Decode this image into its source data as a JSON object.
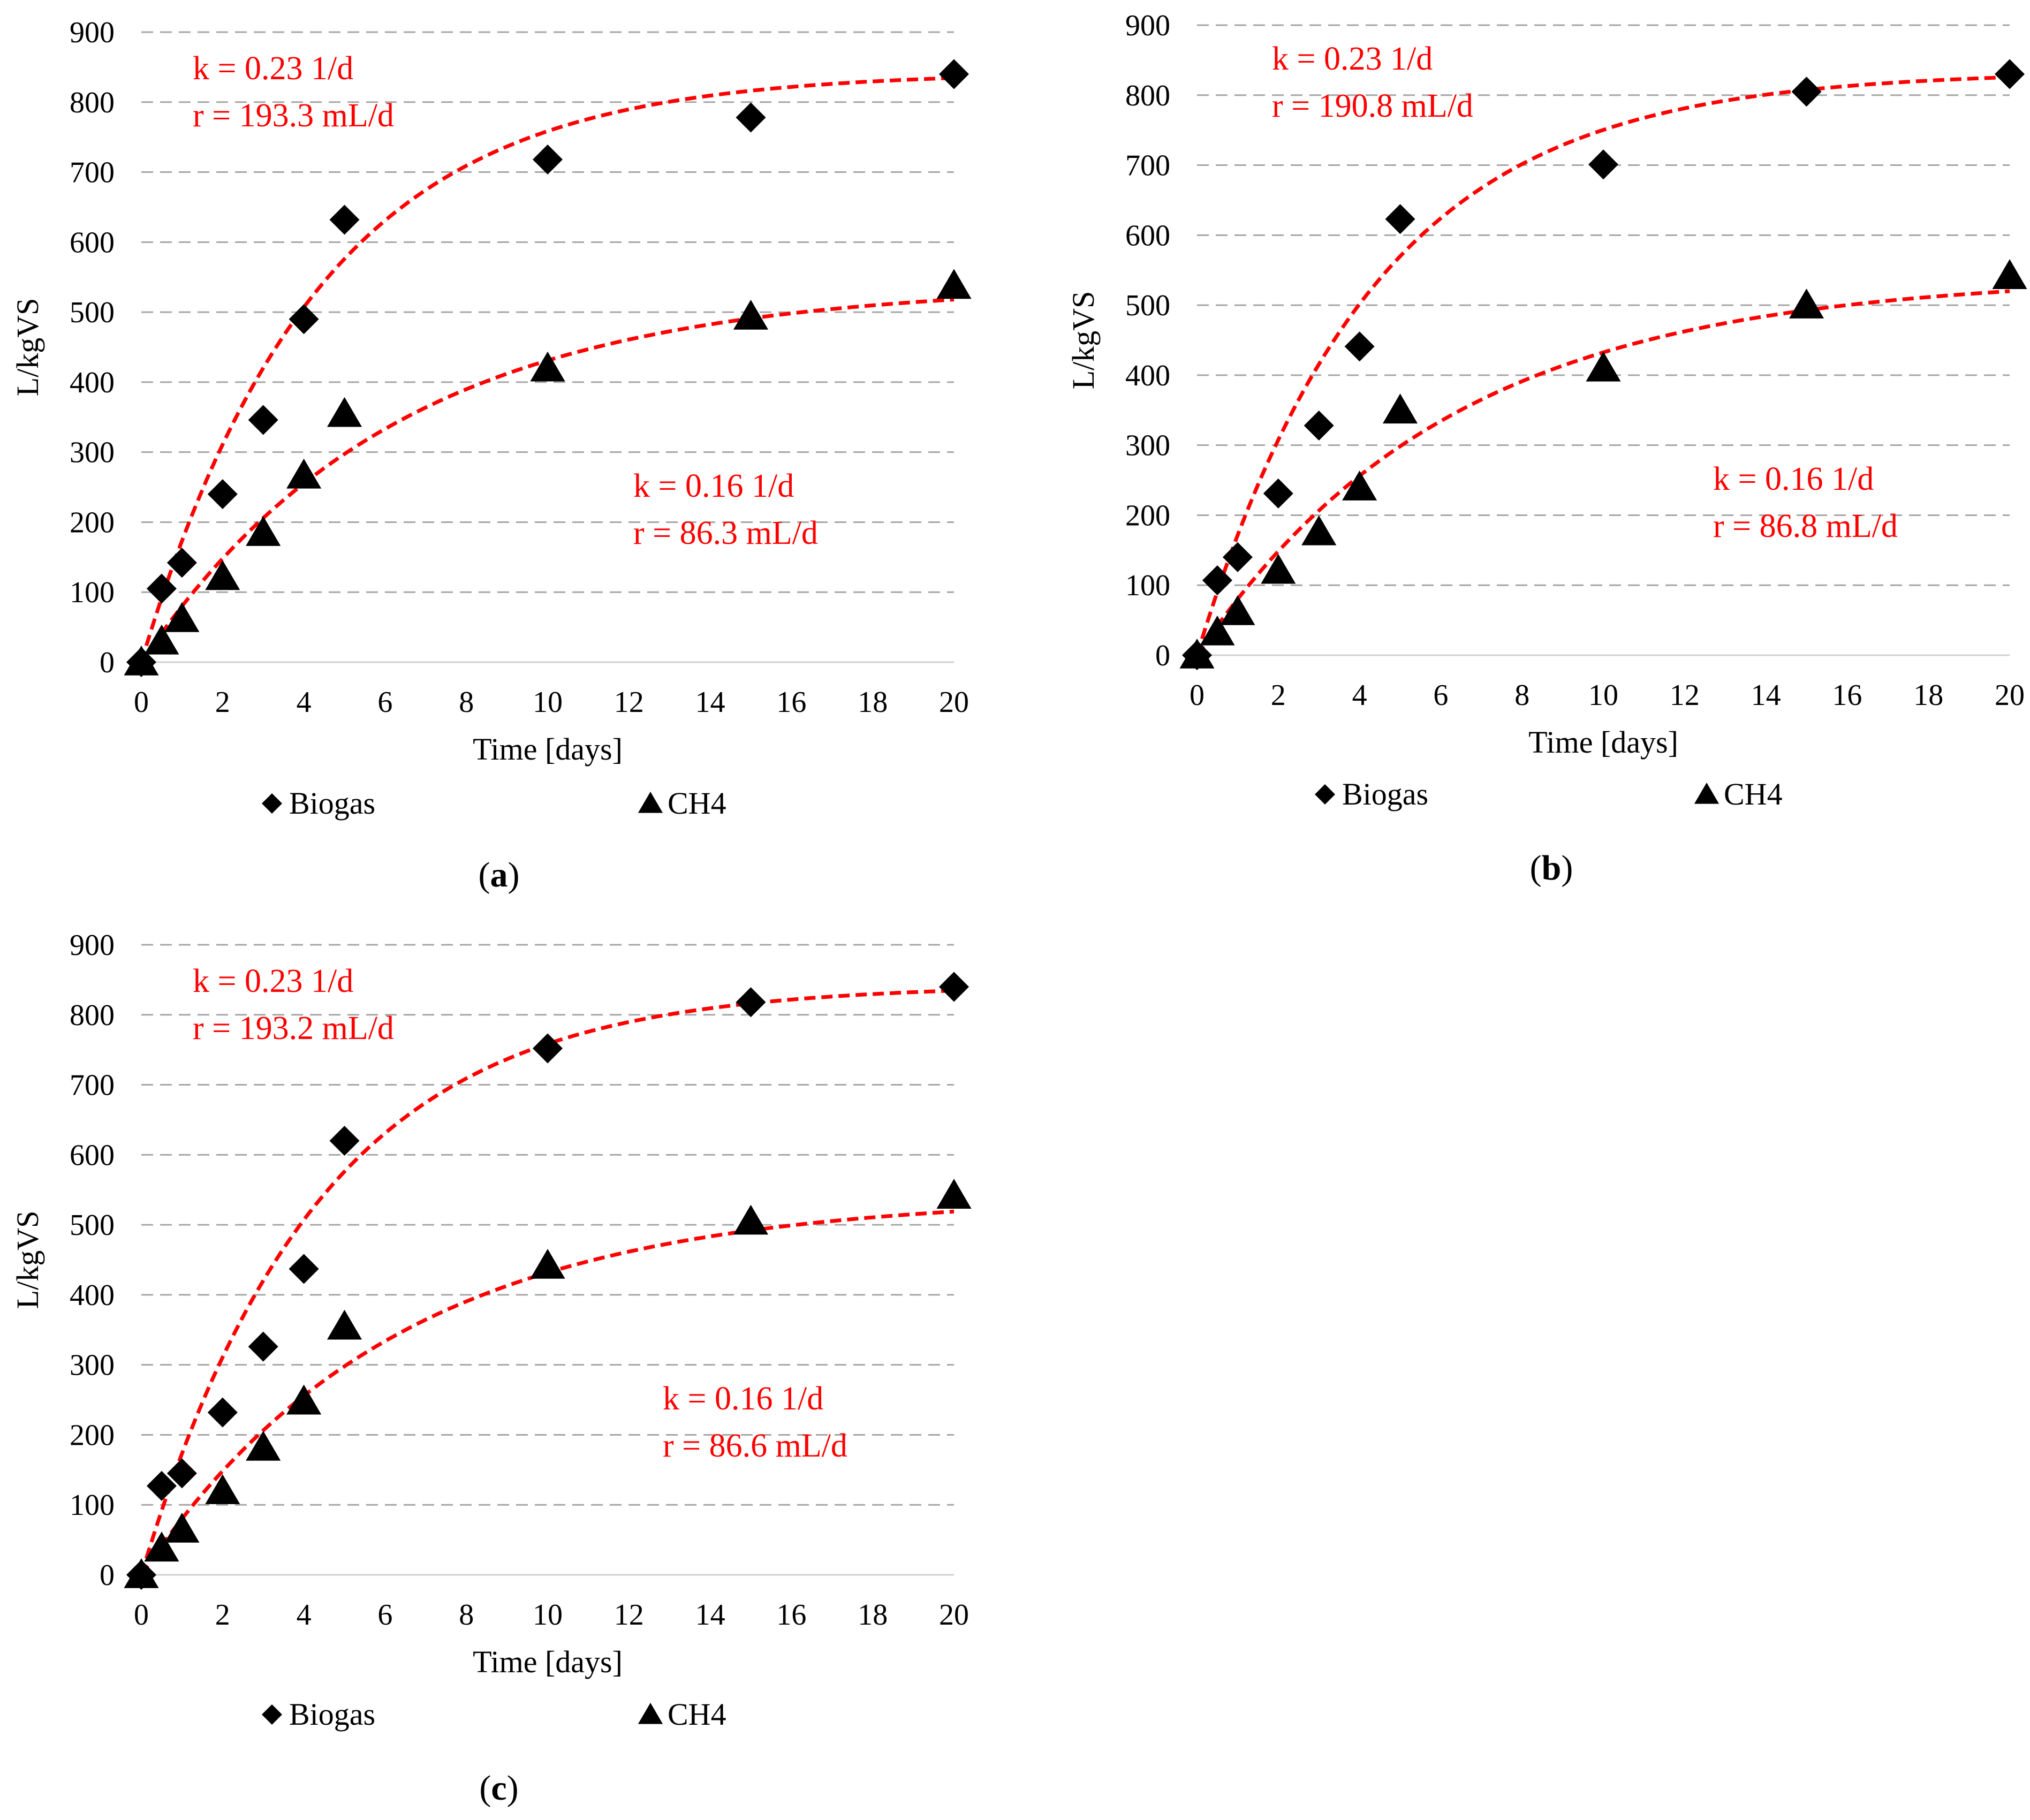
{
  "figure": {
    "colors": {
      "fit": "#ff0000",
      "marker": "#000000",
      "grid": "#a6a6a6",
      "text": "#000000"
    }
  },
  "chart_data": [
    {
      "id": "a",
      "panel_label": "a",
      "type": "scatter",
      "xlabel": "Time [days]",
      "ylabel": "L/kgVS",
      "xlim": [
        0,
        20
      ],
      "ylim": [
        0,
        900
      ],
      "xticks": [
        "0",
        "2",
        "4",
        "6",
        "8",
        "10",
        "12",
        "14",
        "16",
        "18",
        "20"
      ],
      "yticks": [
        "0",
        "100",
        "200",
        "300",
        "400",
        "500",
        "600",
        "700",
        "800",
        "900"
      ],
      "legend": [
        "Biogas",
        "CH4"
      ],
      "series": [
        {
          "name": "Biogas",
          "marker": "diamond",
          "x": [
            0,
            0.5,
            1,
            2,
            3,
            4,
            5,
            10,
            15,
            20
          ],
          "y": [
            0,
            105,
            142,
            240,
            346,
            490,
            632,
            718,
            778,
            840
          ]
        },
        {
          "name": "CH4",
          "marker": "triangle",
          "x": [
            0,
            0.5,
            1,
            2,
            3,
            4,
            5,
            10,
            15,
            20
          ],
          "y": [
            0,
            30,
            62,
            122,
            185,
            267,
            355,
            420,
            494,
            538
          ]
        }
      ],
      "fits": [
        {
          "series": "Biogas",
          "k": 0.23,
          "ymax": 843,
          "label_k": "k = 0.23 1/d",
          "label_r": "r = 193.3 mL/d"
        },
        {
          "series": "CH4",
          "k": 0.16,
          "ymax": 540,
          "label_k": "k = 0.16 1/d",
          "label_r": "r = 86.3 mL/d"
        }
      ]
    },
    {
      "id": "b",
      "panel_label": "b",
      "type": "scatter",
      "xlabel": "Time [days]",
      "ylabel": "L/kgVS",
      "xlim": [
        0,
        20
      ],
      "ylim": [
        0,
        900
      ],
      "xticks": [
        "0",
        "2",
        "4",
        "6",
        "8",
        "10",
        "12",
        "14",
        "16",
        "18",
        "20"
      ],
      "yticks": [
        "0",
        "100",
        "200",
        "300",
        "400",
        "500",
        "600",
        "700",
        "800",
        "900"
      ],
      "legend": [
        "Biogas",
        "CH4"
      ],
      "series": [
        {
          "name": "Biogas",
          "marker": "diamond",
          "x": [
            0,
            0.5,
            1,
            2,
            3,
            4,
            5,
            10,
            15,
            20
          ],
          "y": [
            0,
            107,
            140,
            231,
            328,
            441,
            623,
            701,
            805,
            830
          ]
        },
        {
          "name": "CH4",
          "marker": "triangle",
          "x": [
            0,
            0.5,
            1,
            2,
            3,
            4,
            5,
            10,
            15,
            20
          ],
          "y": [
            0,
            33,
            62,
            121,
            176,
            240,
            350,
            410,
            500,
            542
          ]
        }
      ],
      "fits": [
        {
          "series": "Biogas",
          "k": 0.23,
          "ymax": 834,
          "label_k": "k = 0.23 1/d",
          "label_r": "r = 190.8 mL/d"
        },
        {
          "series": "CH4",
          "k": 0.16,
          "ymax": 542,
          "label_k": "k = 0.16 1/d",
          "label_r": "r = 86.8 mL/d"
        }
      ]
    },
    {
      "id": "c",
      "panel_label": "c",
      "type": "scatter",
      "xlabel": "Time [days]",
      "ylabel": "L/kgVS",
      "xlim": [
        0,
        20
      ],
      "ylim": [
        0,
        900
      ],
      "xticks": [
        "0",
        "2",
        "4",
        "6",
        "8",
        "10",
        "12",
        "14",
        "16",
        "18",
        "20"
      ],
      "yticks": [
        "0",
        "100",
        "200",
        "300",
        "400",
        "500",
        "600",
        "700",
        "800",
        "900"
      ],
      "legend": [
        "Biogas",
        "CH4"
      ],
      "series": [
        {
          "name": "Biogas",
          "marker": "diamond",
          "x": [
            0,
            0.5,
            1,
            2,
            3,
            4,
            5,
            10,
            15,
            20
          ],
          "y": [
            0,
            127,
            145,
            232,
            326,
            437,
            620,
            752,
            818,
            840
          ]
        },
        {
          "name": "CH4",
          "marker": "triangle",
          "x": [
            0,
            0.5,
            1,
            2,
            3,
            4,
            5,
            10,
            15,
            20
          ],
          "y": [
            0,
            38,
            65,
            120,
            182,
            248,
            355,
            442,
            505,
            542
          ]
        }
      ],
      "fits": [
        {
          "series": "Biogas",
          "k": 0.23,
          "ymax": 843,
          "label_k": "k = 0.23 1/d",
          "label_r": "r = 193.2 mL/d"
        },
        {
          "series": "CH4",
          "k": 0.16,
          "ymax": 541,
          "label_k": "k = 0.16 1/d",
          "label_r": "r = 86.6 mL/d"
        }
      ]
    }
  ]
}
